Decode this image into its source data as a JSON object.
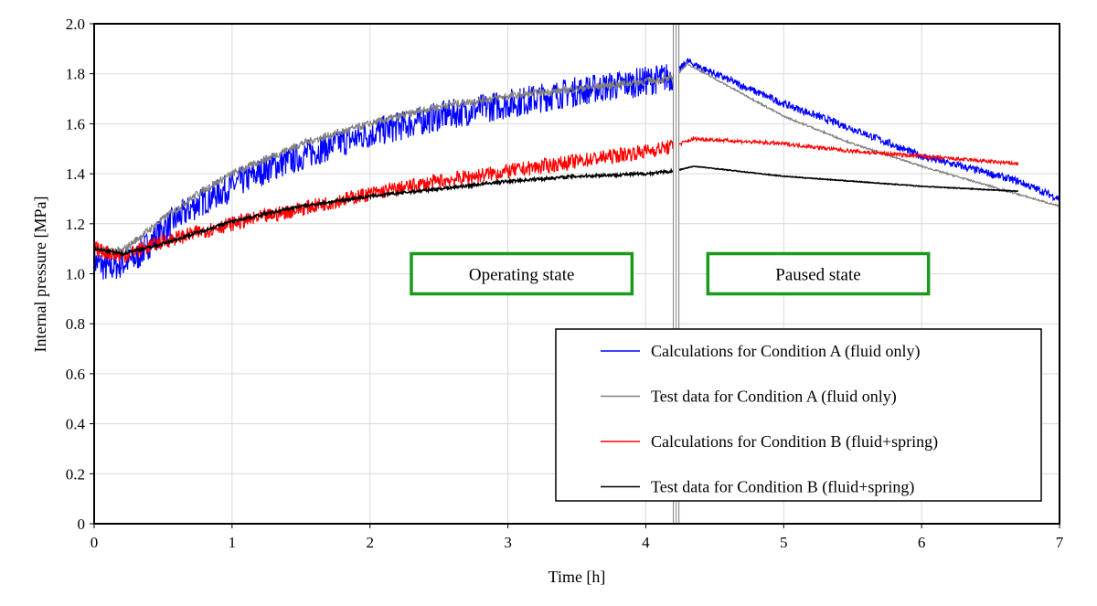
{
  "chart_data": {
    "type": "line",
    "xlabel": "Time [h]",
    "ylabel": "Internal pressure [MPa]",
    "xlim": [
      0,
      7
    ],
    "ylim": [
      0,
      2.0
    ],
    "xticks": [
      "0",
      "1",
      "2",
      "3",
      "4",
      "5",
      "6",
      "7"
    ],
    "yticks": [
      "0",
      "0.2",
      "0.4",
      "0.6",
      "0.8",
      "1.0",
      "1.2",
      "1.4",
      "1.6",
      "1.8",
      "2.0"
    ],
    "grid": true,
    "legend_position": "bottom-right",
    "divider_time": 4.22,
    "annotations": [
      {
        "text": "Operating state",
        "x_range": [
          2.3,
          3.9
        ],
        "y": 1.0,
        "color": "#1a9a1a"
      },
      {
        "text": "Paused state",
        "x_range": [
          4.45,
          6.05
        ],
        "y": 1.0,
        "color": "#1a9a1a"
      }
    ],
    "series": [
      {
        "name": "Calculations for Condition A (fluid only)",
        "color": "#0000ff",
        "noise_amplitude": 0.06,
        "x": [
          0,
          0.1,
          0.2,
          0.3,
          0.5,
          0.75,
          1,
          1.25,
          1.5,
          1.75,
          2,
          2.5,
          3,
          3.5,
          4,
          4.2,
          4.3,
          4.5,
          5,
          5.5,
          6,
          6.5,
          6.7,
          7
        ],
        "y": [
          1.05,
          1.02,
          1.04,
          1.06,
          1.18,
          1.28,
          1.35,
          1.42,
          1.47,
          1.52,
          1.56,
          1.63,
          1.68,
          1.73,
          1.77,
          1.79,
          1.85,
          1.8,
          1.68,
          1.58,
          1.47,
          1.4,
          1.37,
          1.3
        ]
      },
      {
        "name": "Test data for Condition A (fluid only)",
        "color": "#808080",
        "noise_amplitude": 0.015,
        "x": [
          0,
          0.2,
          0.5,
          0.75,
          1,
          1.5,
          2,
          2.5,
          3,
          3.5,
          4,
          4.2,
          4.3,
          4.5,
          5,
          5.5,
          6,
          6.5,
          7
        ],
        "y": [
          1.1,
          1.09,
          1.22,
          1.32,
          1.4,
          1.52,
          1.6,
          1.67,
          1.71,
          1.74,
          1.77,
          1.78,
          1.84,
          1.78,
          1.63,
          1.52,
          1.43,
          1.35,
          1.27
        ]
      },
      {
        "name": "Calculations for Condition B (fluid+spring)",
        "color": "#ff0000",
        "noise_amplitude": 0.03,
        "x": [
          0,
          0.2,
          0.5,
          1,
          1.5,
          2,
          2.5,
          3,
          3.5,
          4,
          4.2,
          4.35,
          5,
          5.5,
          6,
          6.7
        ],
        "y": [
          1.1,
          1.07,
          1.13,
          1.2,
          1.26,
          1.32,
          1.37,
          1.41,
          1.45,
          1.49,
          1.51,
          1.54,
          1.52,
          1.49,
          1.47,
          1.44
        ]
      },
      {
        "name": "Test data for Condition B (fluid+spring)",
        "color": "#000000",
        "noise_amplitude": 0.006,
        "x": [
          0,
          0.2,
          0.5,
          1,
          1.5,
          2,
          2.5,
          3,
          3.5,
          4,
          4.2,
          4.35,
          5,
          5.5,
          6,
          6.7
        ],
        "y": [
          1.1,
          1.08,
          1.12,
          1.21,
          1.27,
          1.31,
          1.34,
          1.37,
          1.39,
          1.4,
          1.41,
          1.43,
          1.39,
          1.37,
          1.35,
          1.33
        ]
      }
    ]
  }
}
